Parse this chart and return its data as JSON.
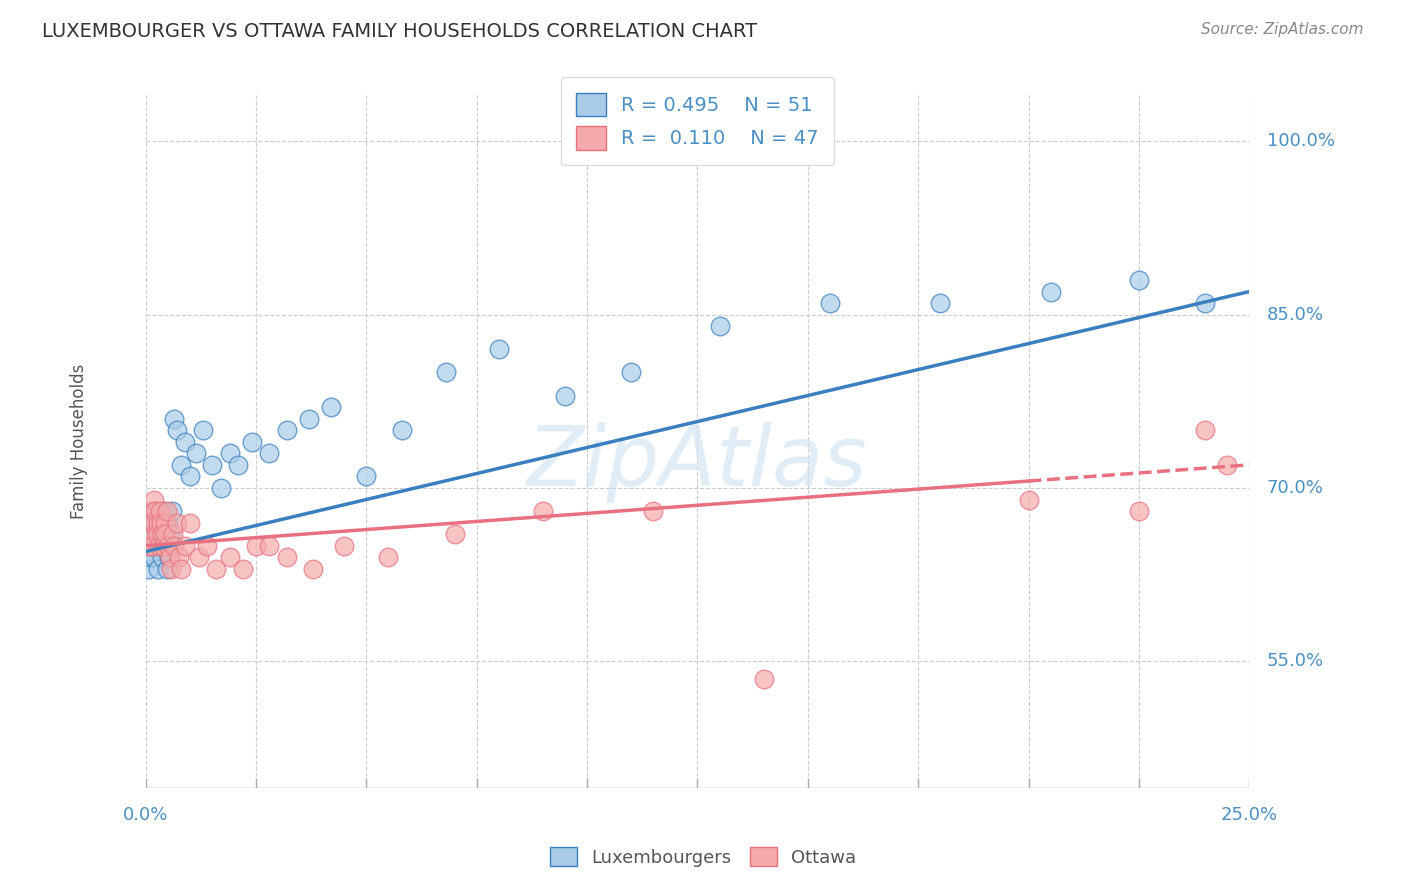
{
  "title": "LUXEMBOURGER VS OTTAWA FAMILY HOUSEHOLDS CORRELATION CHART",
  "source": "Source: ZipAtlas.com",
  "ylabel": "Family Households",
  "xlim": [
    0.0,
    25.0
  ],
  "ylim": [
    44.0,
    104.0
  ],
  "ytick_vals": [
    55.0,
    70.0,
    85.0,
    100.0
  ],
  "ytick_labels": [
    "55.0%",
    "70.0%",
    "85.0%",
    "100.0%"
  ],
  "xtick_vals": [
    0.0,
    2.5,
    5.0,
    7.5,
    10.0,
    12.5,
    15.0,
    17.5,
    20.0,
    22.5,
    25.0
  ],
  "lux_R": 0.495,
  "lux_N": 51,
  "ott_R": 0.11,
  "ott_N": 47,
  "blue_scatter_color": "#aacce8",
  "pink_scatter_color": "#f4aaaa",
  "blue_line_color": "#3a7fbf",
  "pink_line_color": "#e87080",
  "watermark": "ZipAtlas",
  "lux_x": [
    0.05,
    0.08,
    0.1,
    0.12,
    0.15,
    0.18,
    0.2,
    0.22,
    0.25,
    0.28,
    0.3,
    0.33,
    0.35,
    0.38,
    0.4,
    0.42,
    0.45,
    0.48,
    0.5,
    0.53,
    0.55,
    0.58,
    0.6,
    0.65,
    0.7,
    0.8,
    0.9,
    1.0,
    1.15,
    1.3,
    1.5,
    1.7,
    1.9,
    2.1,
    2.4,
    2.8,
    3.2,
    3.7,
    4.2,
    5.0,
    5.8,
    6.8,
    8.0,
    9.5,
    11.0,
    13.0,
    15.5,
    18.0,
    20.5,
    22.5,
    24.0
  ],
  "lux_y": [
    65.0,
    63.0,
    64.0,
    67.0,
    66.0,
    64.0,
    68.0,
    65.0,
    67.0,
    63.0,
    66.0,
    65.0,
    67.0,
    64.0,
    66.0,
    68.0,
    65.0,
    63.0,
    67.0,
    64.0,
    66.0,
    65.0,
    68.0,
    76.0,
    75.0,
    72.0,
    74.0,
    71.0,
    73.0,
    75.0,
    72.0,
    70.0,
    73.0,
    72.0,
    74.0,
    73.0,
    75.0,
    76.0,
    77.0,
    71.0,
    75.0,
    80.0,
    82.0,
    78.0,
    80.0,
    84.0,
    86.0,
    86.0,
    87.0,
    88.0,
    86.0
  ],
  "ott_x": [
    0.05,
    0.07,
    0.1,
    0.12,
    0.15,
    0.18,
    0.2,
    0.22,
    0.25,
    0.28,
    0.3,
    0.33,
    0.35,
    0.38,
    0.4,
    0.43,
    0.45,
    0.48,
    0.5,
    0.55,
    0.58,
    0.62,
    0.65,
    0.7,
    0.75,
    0.8,
    0.9,
    1.0,
    1.2,
    1.4,
    1.6,
    1.9,
    2.2,
    2.5,
    2.8,
    3.2,
    3.8,
    4.5,
    5.5,
    7.0,
    9.0,
    11.5,
    14.0,
    20.0,
    22.5,
    24.0,
    24.5
  ],
  "ott_y": [
    65.0,
    68.0,
    66.0,
    67.0,
    65.0,
    69.0,
    67.0,
    68.0,
    66.0,
    67.0,
    65.0,
    68.0,
    67.0,
    66.0,
    65.0,
    67.0,
    66.0,
    68.0,
    65.0,
    64.0,
    63.0,
    66.0,
    65.0,
    67.0,
    64.0,
    63.0,
    65.0,
    67.0,
    64.0,
    65.0,
    63.0,
    64.0,
    63.0,
    65.0,
    65.0,
    64.0,
    63.0,
    65.0,
    64.0,
    66.0,
    68.0,
    68.0,
    53.5,
    69.0,
    68.0,
    75.0,
    72.0
  ]
}
